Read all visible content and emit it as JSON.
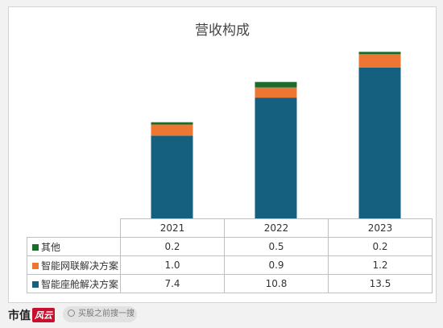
{
  "chart_data": {
    "type": "bar",
    "stacked": true,
    "title": "营收构成",
    "categories": [
      "2021",
      "2022",
      "2023"
    ],
    "series": [
      {
        "name": "智能座舱解决方案",
        "color": "#16607f",
        "values": [
          7.4,
          10.8,
          13.5
        ]
      },
      {
        "name": "智能网联解决方案",
        "color": "#ed7632",
        "values": [
          1.0,
          0.9,
          1.2
        ]
      },
      {
        "name": "其他",
        "color": "#1e6b2e",
        "values": [
          0.2,
          0.5,
          0.2
        ]
      }
    ],
    "table_rows": [
      {
        "name": "其他",
        "color": "#1e6b2e",
        "labels": [
          "0.2",
          "0.5",
          "0.2"
        ]
      },
      {
        "name": "智能网联解决方案",
        "color": "#ed7632",
        "labels": [
          "1.0",
          "0.9",
          "1.2"
        ]
      },
      {
        "name": "智能座舱解决方案",
        "color": "#16607f",
        "labels": [
          "7.4",
          "10.8",
          "13.5"
        ]
      }
    ],
    "ylim": [
      0,
      16
    ]
  },
  "footer": {
    "brand": "市值",
    "brand_badge": "风云",
    "search_text": "买股之前搜一搜"
  }
}
